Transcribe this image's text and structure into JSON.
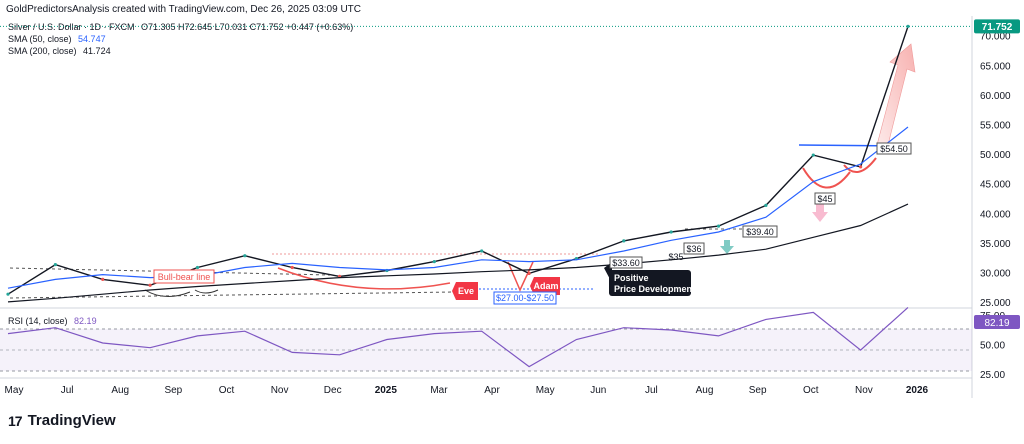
{
  "header": {
    "caption": "GoldPredictorsAnalysis created with TradingView.com, Dec 26, 2025 03:09 UTC"
  },
  "legend": {
    "symbol": "Silver / U.S. Dollar · 1D · FXCM",
    "ohlc": "O71.305  H72.645  L70.031  C71.752  +0.447 (+0.63%)",
    "sma50_label": "SMA (50, close)",
    "sma50_value": "54.747",
    "sma200_label": "SMA (200, close)",
    "sma200_value": "41.724",
    "rsi_label": "RSI (14, close)",
    "rsi_value": "82.19"
  },
  "colors": {
    "up": "#26a69a",
    "down": "#ef5350",
    "candle": "#131722",
    "sma50": "#2962ff",
    "sma200": "#131722",
    "rsi": "#7e57c2",
    "price_tag": "#089981"
  },
  "annotations": {
    "bull_bear": "Bull-bear line",
    "eve": "Eve",
    "adam": "Adam",
    "support_band": "$27.00-$27.50",
    "positive_line1": "Positive",
    "positive_line2": "Price Development",
    "l33_60": "$33.60",
    "l35": "$35",
    "l36": "$36",
    "l39_40": "$39.40",
    "l45": "$45",
    "l54_50": "$54.50"
  },
  "branding": {
    "name": "TradingView",
    "mark": "17"
  },
  "chart_data": [
    {
      "type": "line",
      "title": "Silver / U.S. Dollar · 1D · FXCM",
      "currency": "USD",
      "last_price": "71.752",
      "ylim": [
        24.5,
        73.5
      ],
      "y_ticks": [
        "25.000",
        "30.000",
        "35.000",
        "40.000",
        "45.000",
        "50.000",
        "55.000",
        "60.000",
        "65.000",
        "70.000"
      ],
      "x_ticks": [
        "May",
        "Jul",
        "Aug",
        "Sep",
        "Oct",
        "Nov",
        "Dec",
        "2025",
        "Mar",
        "Apr",
        "May",
        "Jun",
        "Jul",
        "Aug",
        "Sep",
        "Oct",
        "Nov",
        "2026"
      ],
      "x": [
        "2024-05",
        "2024-06",
        "2024-07",
        "2024-08",
        "2024-09",
        "2024-10",
        "2024-11",
        "2024-12",
        "2025-01",
        "2025-02",
        "2025-03",
        "2025-04",
        "2025-05",
        "2025-06",
        "2025-07",
        "2025-08",
        "2025-09",
        "2025-10",
        "2025-11",
        "2025-12"
      ],
      "series": [
        {
          "name": "Silver / U.S. Dollar",
          "values": [
            26.5,
            31.5,
            29.0,
            28.0,
            31.0,
            33.0,
            31.0,
            29.5,
            30.5,
            32.0,
            33.8,
            30.0,
            32.5,
            35.5,
            37.0,
            38.0,
            41.5,
            50.0,
            48.0,
            71.75
          ]
        },
        {
          "name": "SMA (50, close)",
          "values": [
            27.5,
            29.0,
            29.8,
            29.3,
            29.5,
            31.0,
            31.7,
            31.0,
            30.6,
            31.0,
            32.3,
            32.0,
            32.3,
            33.8,
            35.6,
            37.0,
            39.5,
            45.5,
            48.5,
            54.747
          ]
        },
        {
          "name": "SMA (200, close)",
          "values": [
            25.2,
            25.8,
            26.5,
            27.2,
            27.8,
            28.3,
            28.8,
            29.3,
            29.6,
            29.9,
            30.3,
            30.6,
            31.0,
            31.6,
            32.3,
            33.1,
            34.1,
            36.1,
            38.1,
            41.724
          ]
        }
      ]
    },
    {
      "type": "line",
      "title": "RSI (14, close)",
      "ylim": [
        24,
        80
      ],
      "y_ticks": [
        "25.00",
        "50.00",
        "75.00"
      ],
      "series": [
        {
          "name": "RSI (14, close)",
          "values": [
            60,
            65,
            52,
            48,
            58,
            62,
            44,
            42,
            55,
            60,
            62,
            32,
            55,
            65,
            63,
            58,
            72,
            78,
            46,
            82.19
          ]
        }
      ]
    }
  ]
}
